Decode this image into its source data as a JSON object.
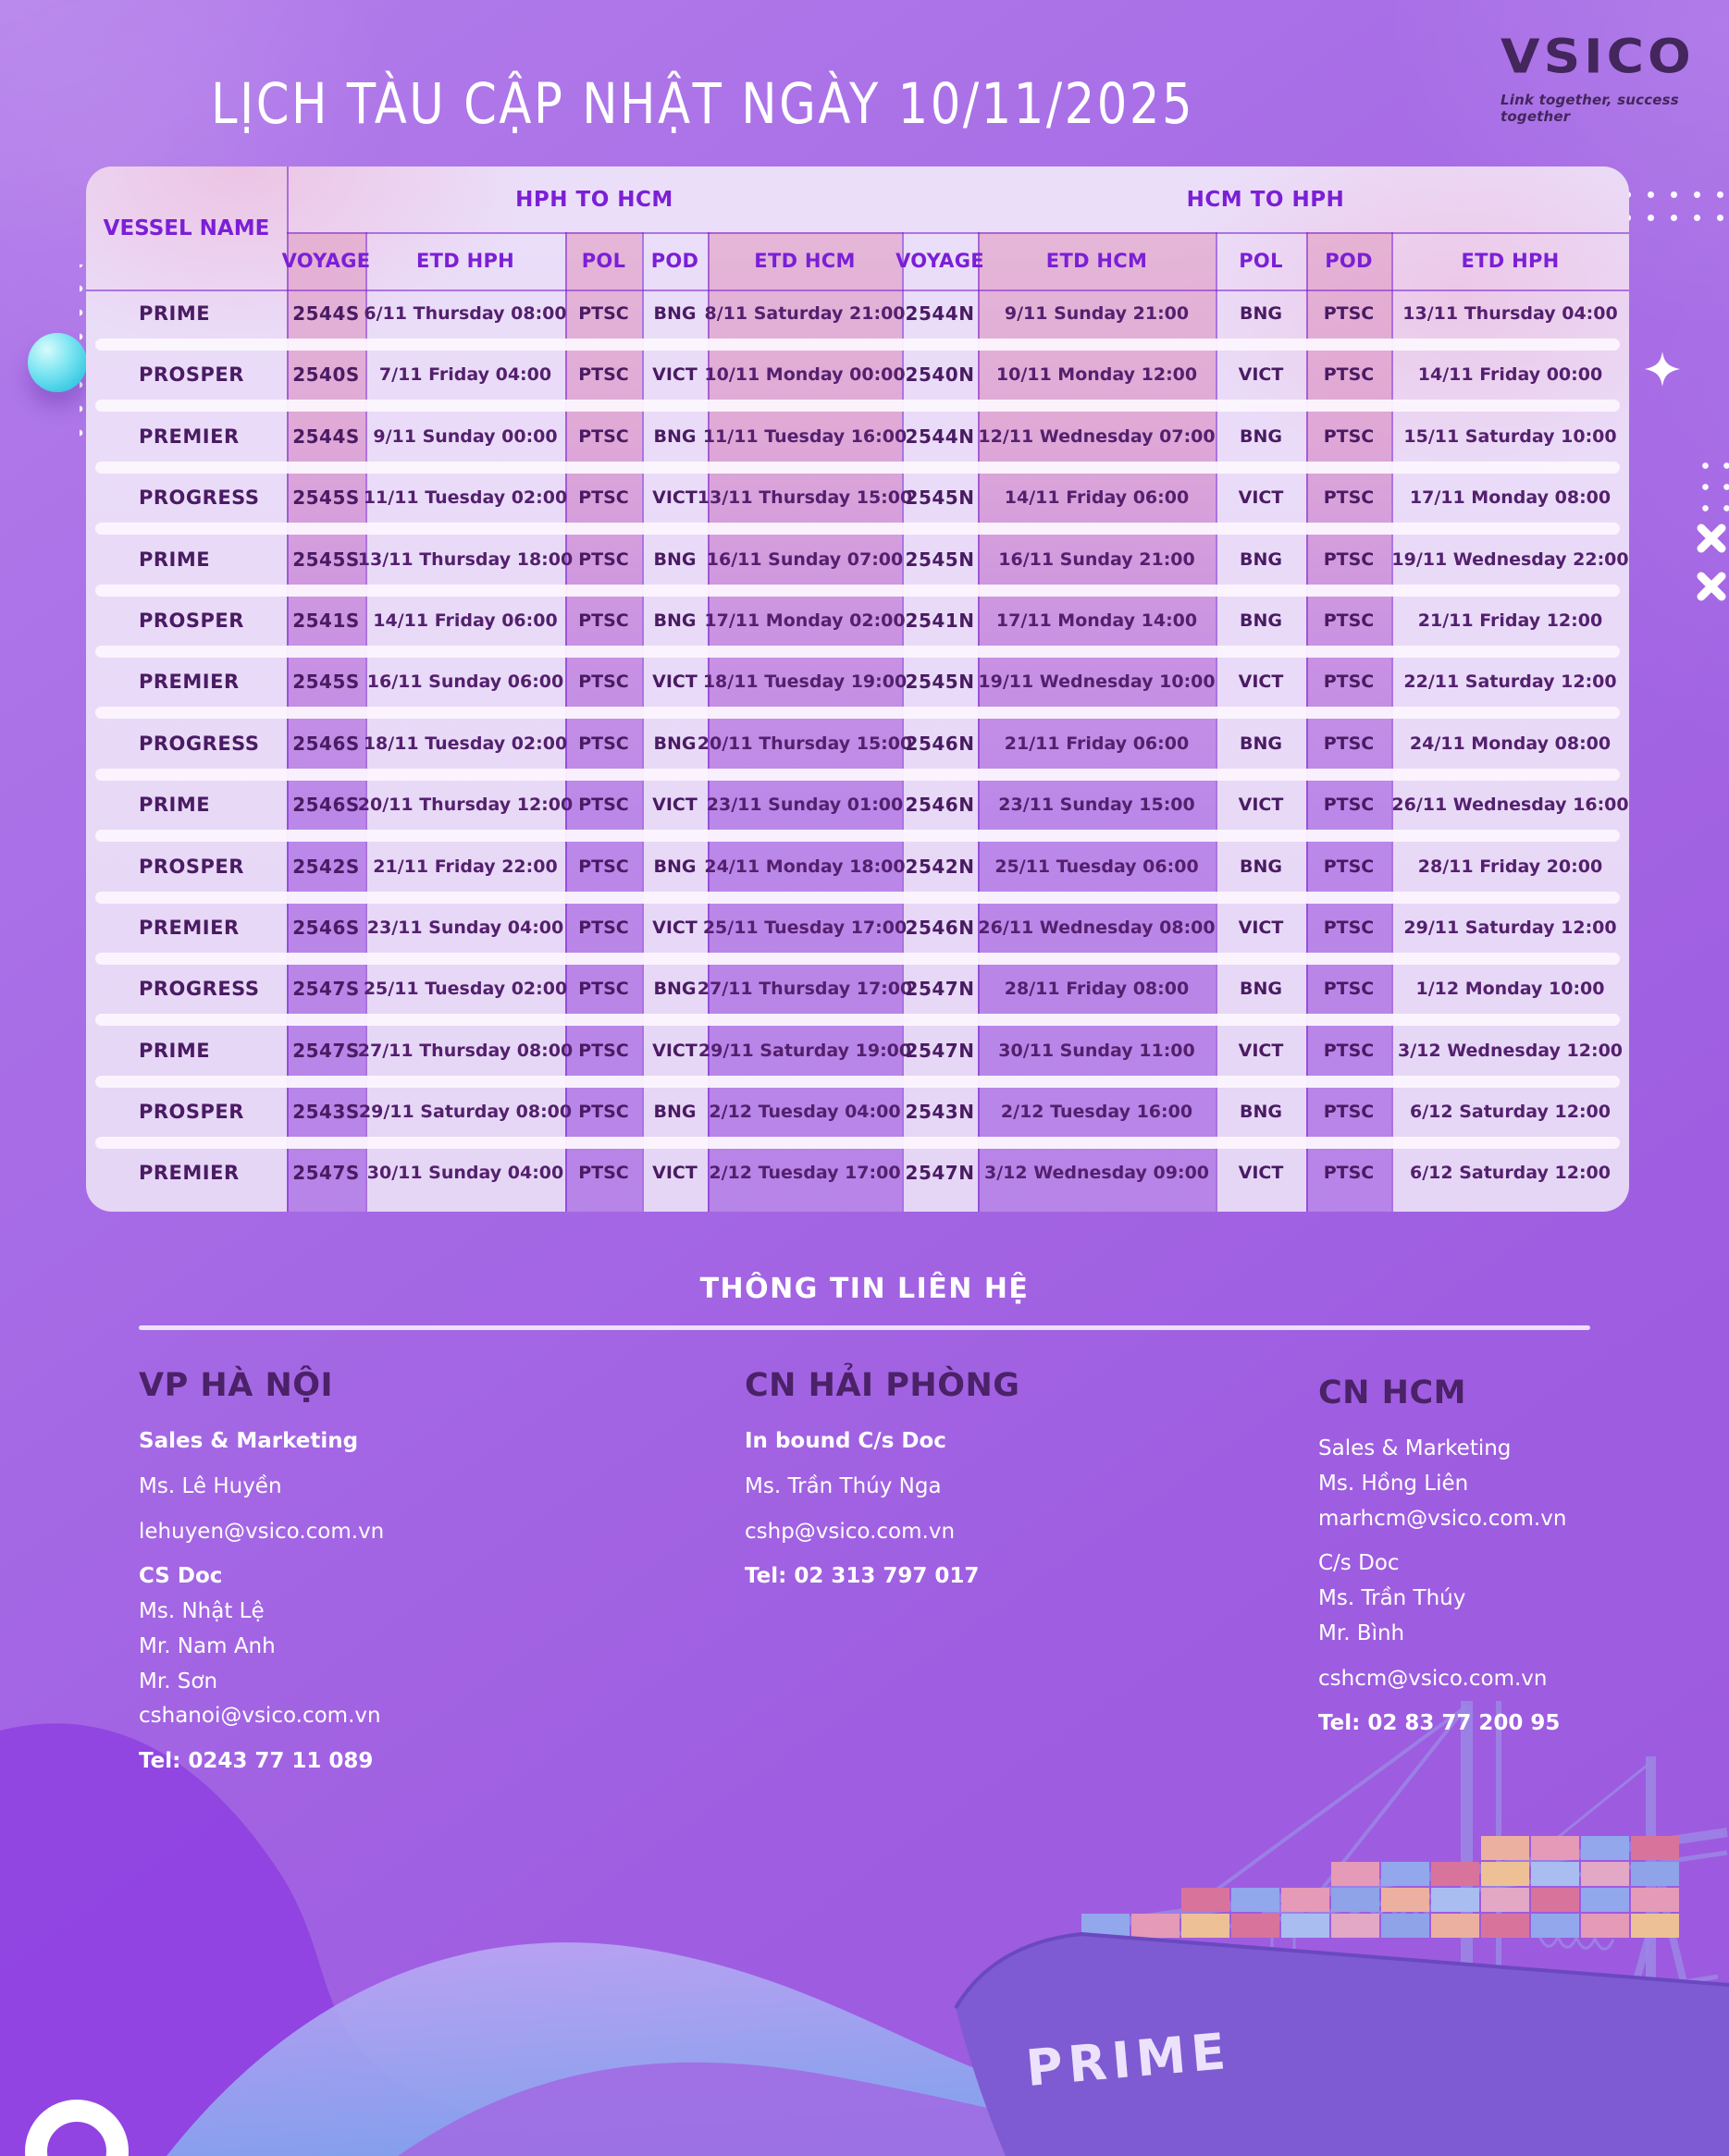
{
  "title": "LỊCH TÀU CẬP NHẬT NGÀY 10/11/2025",
  "logo": {
    "name": "VSICO",
    "tagline": "Link together, success together"
  },
  "colors": {
    "background": "#A468E4",
    "accent_purple": "#7B1FD6",
    "band_pink": "#E3A6C9",
    "band_purple": "#A361E1",
    "table_background": "#E8DAF7",
    "cell_text": "#54206E",
    "contact_heading": "#4B2167",
    "logo_color": "#43265C",
    "sphere_cyan": "#3FCBE4"
  },
  "table": {
    "vessel_header": "VESSEL NAME",
    "groups": [
      {
        "label": "HPH TO HCM"
      },
      {
        "label": "HCM TO HPH"
      }
    ],
    "subheaders": [
      "VOYAGE",
      "ETD HPH",
      "POL",
      "POD",
      "ETD HCM",
      "VOYAGE",
      "ETD HCM",
      "POL",
      "POD",
      "ETD HPH"
    ],
    "rows": [
      {
        "vessel": "PRIME",
        "cells": [
          "2544S",
          "6/11 Thursday 08:00",
          "PTSC",
          "BNG",
          "8/11 Saturday 21:00",
          "2544N",
          "9/11 Sunday 21:00",
          "BNG",
          "PTSC",
          "13/11 Thursday 04:00"
        ]
      },
      {
        "vessel": "PROSPER",
        "cells": [
          "2540S",
          "7/11 Friday 04:00",
          "PTSC",
          "VICT",
          "10/11 Monday 00:00",
          "2540N",
          "10/11 Monday 12:00",
          "VICT",
          "PTSC",
          "14/11 Friday 00:00"
        ]
      },
      {
        "vessel": "PREMIER",
        "cells": [
          "2544S",
          "9/11 Sunday 00:00",
          "PTSC",
          "BNG",
          "11/11 Tuesday 16:00",
          "2544N",
          "12/11 Wednesday 07:00",
          "BNG",
          "PTSC",
          "15/11 Saturday 10:00"
        ]
      },
      {
        "vessel": "PROGRESS",
        "cells": [
          "2545S",
          "11/11 Tuesday 02:00",
          "PTSC",
          "VICT",
          "13/11 Thursday 15:00",
          "2545N",
          "14/11 Friday 06:00",
          "VICT",
          "PTSC",
          "17/11 Monday 08:00"
        ]
      },
      {
        "vessel": "PRIME",
        "cells": [
          "2545S",
          "13/11 Thursday 18:00",
          "PTSC",
          "BNG",
          "16/11 Sunday 07:00",
          "2545N",
          "16/11 Sunday 21:00",
          "BNG",
          "PTSC",
          "19/11 Wednesday 22:00"
        ]
      },
      {
        "vessel": "PROSPER",
        "cells": [
          "2541S",
          "14/11 Friday 06:00",
          "PTSC",
          "BNG",
          "17/11 Monday 02:00",
          "2541N",
          "17/11 Monday 14:00",
          "BNG",
          "PTSC",
          "21/11 Friday 12:00"
        ]
      },
      {
        "vessel": "PREMIER",
        "cells": [
          "2545S",
          "16/11 Sunday 06:00",
          "PTSC",
          "VICT",
          "18/11 Tuesday 19:00",
          "2545N",
          "19/11 Wednesday 10:00",
          "VICT",
          "PTSC",
          "22/11 Saturday 12:00"
        ]
      },
      {
        "vessel": "PROGRESS",
        "cells": [
          "2546S",
          "18/11 Tuesday 02:00",
          "PTSC",
          "BNG",
          "20/11 Thursday 15:00",
          "2546N",
          "21/11 Friday 06:00",
          "BNG",
          "PTSC",
          "24/11 Monday 08:00"
        ]
      },
      {
        "vessel": "PRIME",
        "cells": [
          "2546S",
          "20/11 Thursday 12:00",
          "PTSC",
          "VICT",
          "23/11 Sunday 01:00",
          "2546N",
          "23/11 Sunday 15:00",
          "VICT",
          "PTSC",
          "26/11 Wednesday 16:00"
        ]
      },
      {
        "vessel": "PROSPER",
        "cells": [
          "2542S",
          "21/11 Friday 22:00",
          "PTSC",
          "BNG",
          "24/11 Monday 18:00",
          "2542N",
          "25/11 Tuesday 06:00",
          "BNG",
          "PTSC",
          "28/11 Friday 20:00"
        ]
      },
      {
        "vessel": "PREMIER",
        "cells": [
          "2546S",
          "23/11 Sunday 04:00",
          "PTSC",
          "VICT",
          "25/11 Tuesday 17:00",
          "2546N",
          "26/11 Wednesday 08:00",
          "VICT",
          "PTSC",
          "29/11 Saturday 12:00"
        ]
      },
      {
        "vessel": "PROGRESS",
        "cells": [
          "2547S",
          "25/11 Tuesday 02:00",
          "PTSC",
          "BNG",
          "27/11 Thursday 17:00",
          "2547N",
          "28/11 Friday 08:00",
          "BNG",
          "PTSC",
          "1/12 Monday 10:00"
        ]
      },
      {
        "vessel": "PRIME",
        "cells": [
          "2547S",
          "27/11 Thursday 08:00",
          "PTSC",
          "VICT",
          "29/11 Saturday 19:00",
          "2547N",
          "30/11 Sunday 11:00",
          "VICT",
          "PTSC",
          "3/12 Wednesday 12:00"
        ]
      },
      {
        "vessel": "PROSPER",
        "cells": [
          "2543S",
          "29/11 Saturday 08:00",
          "PTSC",
          "BNG",
          "2/12 Tuesday 04:00",
          "2543N",
          "2/12 Tuesday 16:00",
          "BNG",
          "PTSC",
          "6/12 Saturday 12:00"
        ]
      },
      {
        "vessel": "PREMIER",
        "cells": [
          "2547S",
          "30/11 Sunday 04:00",
          "PTSC",
          "VICT",
          "2/12 Tuesday 17:00",
          "2547N",
          "3/12 Wednesday 09:00",
          "VICT",
          "PTSC",
          "6/12 Saturday 12:00"
        ]
      }
    ]
  },
  "contact": {
    "title": "THÔNG TIN LIÊN HỆ",
    "offices": [
      {
        "name": "VP HÀ NỘI",
        "lines": [
          {
            "text": "Sales & Marketing",
            "bold": true
          },
          {
            "text": "Ms. Lê Huyền",
            "gap": true
          },
          {
            "text": "lehuyen@vsico.com.vn",
            "gap": true
          },
          {
            "text": "CS Doc",
            "bold": true,
            "gap": true
          },
          {
            "text": "Ms. Nhật Lệ"
          },
          {
            "text": "Mr. Nam Anh"
          },
          {
            "text": "Mr. Sơn"
          },
          {
            "text": "cshanoi@vsico.com.vn"
          },
          {
            "text": "Tel: 0243 77 11 089",
            "bold": true,
            "gap": true
          }
        ]
      },
      {
        "name": "CN HẢI PHÒNG",
        "lines": [
          {
            "text": "In bound C/s Doc",
            "bold": true
          },
          {
            "text": "Ms. Trần Thúy Nga",
            "gap": true
          },
          {
            "text": "cshp@vsico.com.vn",
            "gap": true
          },
          {
            "text": "Tel: 02 313 797 017",
            "bold": true,
            "gap": true
          }
        ]
      },
      {
        "name": "CN HCM",
        "lines": [
          {
            "text": "Sales & Marketing"
          },
          {
            "text": "Ms. Hồng Liên"
          },
          {
            "text": "marhcm@vsico.com.vn"
          },
          {
            "text": "C/s Doc",
            "gap": true
          },
          {
            "text": "Ms. Trần Thúy"
          },
          {
            "text": "Mr. Bình"
          },
          {
            "text": "cshcm@vsico.com.vn",
            "gap": true
          },
          {
            "text": "Tel: 02 83 77 200 95",
            "bold": true,
            "gap": true
          }
        ]
      }
    ]
  },
  "ship_label": "PRIME"
}
